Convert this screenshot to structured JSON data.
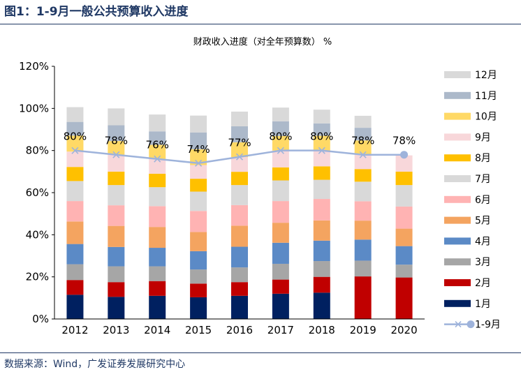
{
  "figure": {
    "title": "图1：1-9月一般公共预算收入进度",
    "source": "数据来源：Wind，广发证券发展研究中心"
  },
  "chart_data": {
    "type": "bar",
    "stacked": true,
    "title": "财政收入进度（对全年预算数） %",
    "categories": [
      "2012",
      "2013",
      "2014",
      "2015",
      "2016",
      "2017",
      "2018",
      "2019",
      "2020"
    ],
    "ylim": [
      0,
      120
    ],
    "yticks": [
      0,
      20,
      40,
      60,
      80,
      100,
      120
    ],
    "ytick_labels": [
      "0%",
      "20%",
      "40%",
      "60%",
      "80%",
      "100%",
      "120%"
    ],
    "grid": false,
    "legend_position": "right",
    "series": [
      {
        "name": "1月",
        "color": "#002060",
        "values": [
          11.5,
          10.5,
          11.0,
          10.3,
          11.0,
          12.0,
          12.5,
          null,
          null
        ]
      },
      {
        "name": "2月",
        "color": "#c00000",
        "values": [
          7.0,
          7.0,
          7.0,
          6.5,
          6.5,
          6.7,
          7.5,
          20.2,
          19.7
        ]
      },
      {
        "name": "3月",
        "color": "#a6a6a6",
        "values": [
          7.5,
          7.5,
          7.0,
          6.7,
          7.0,
          7.5,
          7.5,
          7.5,
          6.1
        ]
      },
      {
        "name": "4月",
        "color": "#5b8ac6",
        "values": [
          9.6,
          9.2,
          8.8,
          8.7,
          9.8,
          10.0,
          9.7,
          10.0,
          8.8
        ]
      },
      {
        "name": "5月",
        "color": "#f4a460",
        "values": [
          10.7,
          10.0,
          9.9,
          9.1,
          10.0,
          9.5,
          9.6,
          9.0,
          8.3
        ]
      },
      {
        "name": "6月",
        "color": "#ffb3b3",
        "values": [
          9.7,
          9.8,
          9.9,
          10.0,
          9.8,
          10.3,
          10.2,
          9.2,
          10.5
        ]
      },
      {
        "name": "7月",
        "color": "#d9d9d9",
        "values": [
          9.5,
          9.6,
          9.0,
          9.2,
          9.5,
          9.8,
          9.1,
          9.3,
          10.2
        ]
      },
      {
        "name": "8月",
        "color": "#ffc000",
        "values": [
          6.7,
          6.4,
          6.4,
          6.1,
          6.3,
          6.2,
          6.4,
          6.0,
          6.4
        ]
      },
      {
        "name": "9月",
        "color": "#f8d7da",
        "values": [
          7.3,
          8.0,
          7.0,
          6.5,
          7.0,
          8.0,
          7.5,
          7.1,
          7.7
        ]
      },
      {
        "name": "10月",
        "color": "#ffd966",
        "values": [
          7.6,
          6.5,
          6.7,
          7.5,
          7.0,
          6.9,
          7.0,
          6.5,
          null
        ]
      },
      {
        "name": "11月",
        "color": "#acb9ca",
        "values": [
          6.5,
          7.5,
          6.4,
          8.0,
          7.6,
          7.0,
          5.9,
          6.0,
          null
        ]
      },
      {
        "name": "12月",
        "color": "#d9d9d9",
        "values": [
          7.0,
          8.0,
          8.0,
          8.0,
          7.0,
          6.5,
          6.5,
          5.7,
          null
        ]
      }
    ],
    "line": {
      "name": "1-9月",
      "color": "#9eb3db",
      "values": [
        80,
        78,
        76,
        74,
        77,
        80,
        80,
        78,
        78
      ],
      "labels": [
        "80%",
        "78%",
        "76%",
        "74%",
        "77%",
        "80%",
        "80%",
        "78%",
        "78%"
      ]
    }
  }
}
